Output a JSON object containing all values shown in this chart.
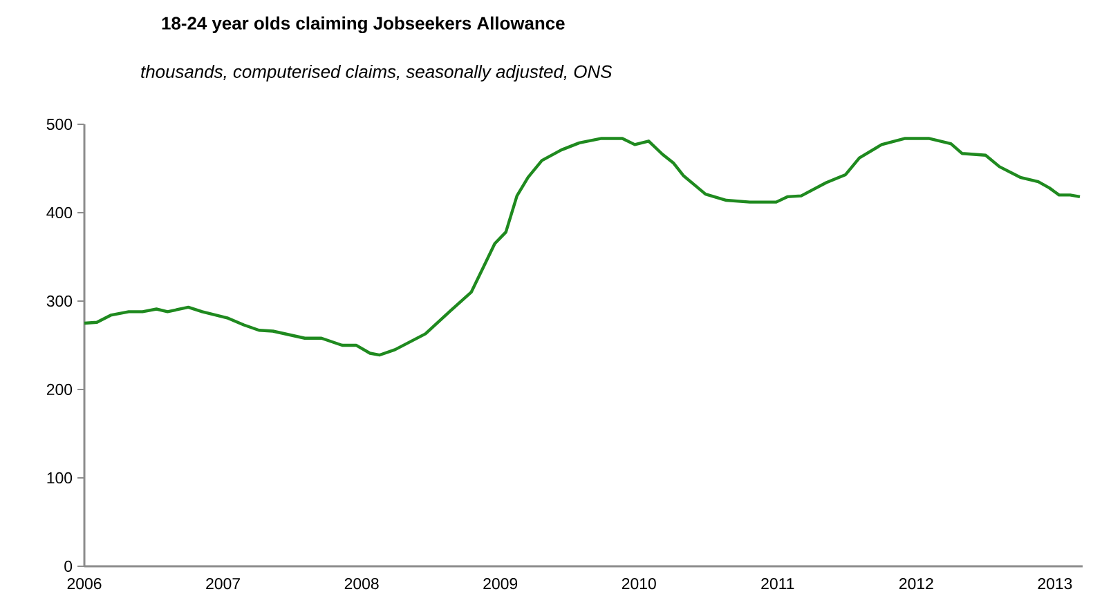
{
  "chart_data": {
    "type": "line",
    "title": "18-24 year olds claiming Jobseekers  Allowance",
    "subtitle": "thousands, computerised claims, seasonally adjusted, ONS",
    "xlim": [
      2006,
      2013.2
    ],
    "xticks": [
      2006,
      2007,
      2008,
      2009,
      2010,
      2011,
      2012,
      2013
    ],
    "ylim": [
      0,
      500
    ],
    "yticks": [
      0,
      100,
      200,
      300,
      400,
      500
    ],
    "grid": false,
    "marker": "none",
    "line_style": "solid",
    "series": [
      {
        "color": "#1f8a1f",
        "x": [
          2006.0,
          2006.09,
          2006.19,
          2006.32,
          2006.42,
          2006.52,
          2006.6,
          2006.75,
          2006.85,
          2007.03,
          2007.15,
          2007.26,
          2007.36,
          2007.59,
          2007.71,
          2007.86,
          2007.96,
          2008.06,
          2008.13,
          2008.24,
          2008.46,
          2008.64,
          2008.79,
          2008.88,
          2008.96,
          2009.04,
          2009.12,
          2009.2,
          2009.3,
          2009.44,
          2009.57,
          2009.73,
          2009.88,
          2009.97,
          2010.07,
          2010.17,
          2010.25,
          2010.32,
          2010.48,
          2010.63,
          2010.8,
          2010.99,
          2011.07,
          2011.17,
          2011.35,
          2011.49,
          2011.59,
          2011.75,
          2011.92,
          2012.09,
          2012.25,
          2012.33,
          2012.5,
          2012.6,
          2012.75,
          2012.88,
          2012.96,
          2013.03,
          2013.11,
          2013.18
        ],
        "values": [
          275,
          276,
          284,
          288,
          288,
          291,
          288,
          293,
          288,
          281,
          273,
          267,
          266,
          258,
          258,
          250,
          250,
          241,
          239,
          245,
          263,
          289,
          310,
          339,
          365,
          378,
          419,
          440,
          459,
          471,
          479,
          484,
          484,
          477,
          481,
          466,
          456,
          442,
          421,
          414,
          412,
          412,
          418,
          419,
          434,
          443,
          462,
          477,
          484,
          484,
          478,
          467,
          465,
          452,
          440,
          435,
          428,
          420,
          420,
          418
        ]
      }
    ]
  }
}
